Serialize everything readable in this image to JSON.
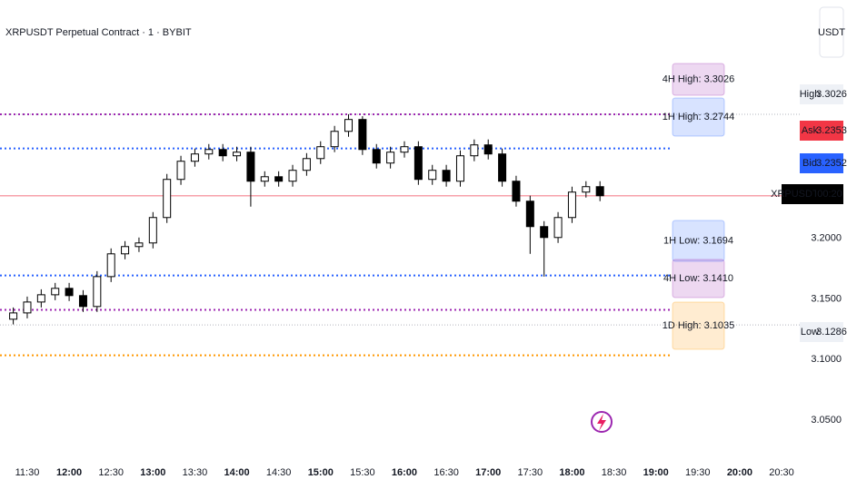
{
  "chart_data": {
    "type": "candlestick",
    "title": "XRPUSDT Perpetual Contract · 1 · BYBIT",
    "currency": "USDT",
    "x": [
      680,
      690,
      700,
      710,
      720,
      730,
      740,
      750,
      760,
      770,
      780,
      790,
      800,
      810,
      820,
      830,
      840,
      850,
      860,
      870,
      880,
      890,
      900,
      910,
      920,
      930,
      940,
      950,
      960,
      970,
      980,
      990,
      1000,
      1010,
      1020,
      1030,
      1040,
      1050,
      1060,
      1070,
      1080,
      1090,
      1100
    ],
    "open": [
      3.1333,
      3.1385,
      3.1475,
      3.1535,
      3.1588,
      3.1528,
      3.1438,
      3.1685,
      3.1873,
      3.1933,
      3.1963,
      3.2173,
      3.2488,
      3.2638,
      3.2698,
      3.2735,
      3.2683,
      3.2713,
      3.2473,
      3.251,
      3.2473,
      3.2563,
      3.266,
      3.2758,
      3.2885,
      3.2983,
      3.2735,
      3.2623,
      3.2713,
      3.2758,
      3.2488,
      3.2563,
      3.2473,
      3.2683,
      3.2773,
      3.2698,
      3.2473,
      3.2308,
      3.2098,
      3.2008,
      3.2173,
      3.2383,
      3.2428
    ],
    "high": [
      3.143,
      3.152,
      3.158,
      3.1633,
      3.1633,
      3.1573,
      3.173,
      3.1918,
      3.1978,
      3.2008,
      3.2218,
      3.2533,
      3.2683,
      3.2743,
      3.278,
      3.278,
      3.2758,
      3.2758,
      3.2555,
      3.2555,
      3.2608,
      3.2705,
      3.2803,
      3.293,
      3.3026,
      3.301,
      3.278,
      3.2758,
      3.2803,
      3.2803,
      3.2608,
      3.2608,
      3.2728,
      3.2818,
      3.2818,
      3.2743,
      3.2518,
      3.2353,
      3.2143,
      3.2218,
      3.2428,
      3.2473,
      3.2473
    ],
    "low": [
      3.129,
      3.134,
      3.143,
      3.149,
      3.1483,
      3.1393,
      3.1393,
      3.164,
      3.1828,
      3.1888,
      3.1918,
      3.2128,
      3.2443,
      3.2593,
      3.2653,
      3.2638,
      3.2638,
      3.2263,
      3.2428,
      3.2428,
      3.2428,
      3.2518,
      3.2615,
      3.2713,
      3.284,
      3.269,
      3.2578,
      3.2578,
      3.2668,
      3.2443,
      3.2443,
      3.2428,
      3.2428,
      3.2638,
      3.2653,
      3.2428,
      3.2263,
      3.1873,
      3.1685,
      3.1963,
      3.2128,
      3.2338,
      3.2308
    ],
    "close": [
      3.1385,
      3.1475,
      3.1535,
      3.1588,
      3.1528,
      3.1438,
      3.1685,
      3.1873,
      3.1933,
      3.1963,
      3.2173,
      3.2488,
      3.2638,
      3.2698,
      3.2735,
      3.2683,
      3.2713,
      3.2473,
      3.251,
      3.2473,
      3.2563,
      3.266,
      3.2758,
      3.2885,
      3.2983,
      3.2735,
      3.2623,
      3.2713,
      3.2758,
      3.2488,
      3.2563,
      3.2473,
      3.2683,
      3.2773,
      3.2698,
      3.2473,
      3.2308,
      3.2098,
      3.2008,
      3.2173,
      3.2383,
      3.2428,
      3.2353
    ],
    "levels": [
      {
        "label": "4H High: 3.3026",
        "value": 3.3026,
        "color": "#9c27b0"
      },
      {
        "label": "1H High: 3.2744",
        "value": 3.2744,
        "color": "#2962ff"
      },
      {
        "label": "1H Low: 3.1694",
        "value": 3.1694,
        "color": "#2962ff"
      },
      {
        "label": "4H Low: 3.1410",
        "value": 3.141,
        "color": "#9c27b0"
      },
      {
        "label": "1D High: 3.1035",
        "value": 3.1035,
        "color": "#ff9800"
      }
    ],
    "price_tags": [
      {
        "name": "High",
        "value": {
          "value": 3.3026,
          "label": "3.3026"
        },
        "color": "#eef1f6",
        "text_color": "#131722"
      },
      {
        "name": "Ask",
        "value": {
          "value": 3.2353,
          "label": "3.2353"
        },
        "color": "#f23645",
        "text_color": "#ffffff"
      },
      {
        "name": "Bid",
        "value": {
          "value": 3.2352,
          "label": "3.2352"
        },
        "color": "#2962ff",
        "text_color": "#ffffff"
      },
      {
        "name": "XRPUSDT.P",
        "value": "00:20",
        "color": "#000000",
        "text_color": "#ffffff"
      },
      {
        "name": "Low",
        "value": {
          "value": 3.1286,
          "label": "3.1286"
        },
        "color": "#eef1f6",
        "text_color": "#131722"
      }
    ],
    "ylim": [
      3.0185,
      3.397
    ],
    "yticks": [
      {
        "value": 3.2,
        "label": "3.2000"
      },
      {
        "value": 3.15,
        "label": "3.1500"
      },
      {
        "value": 3.1,
        "label": "3.1000"
      },
      {
        "value": 3.05,
        "label": "3.0500"
      }
    ],
    "xlim": [
      670.5,
      1230
    ],
    "xticks": [
      {
        "value": 690,
        "label": "11:30"
      },
      {
        "value": 720,
        "label": "12:00"
      },
      {
        "value": 750,
        "label": "12:30"
      },
      {
        "value": 780,
        "label": "13:00"
      },
      {
        "value": 810,
        "label": "13:30"
      },
      {
        "value": 840,
        "label": "14:00"
      },
      {
        "value": 870,
        "label": "14:30"
      },
      {
        "value": 900,
        "label": "15:00"
      },
      {
        "value": 930,
        "label": "15:30"
      },
      {
        "value": 960,
        "label": "16:00"
      },
      {
        "value": 990,
        "label": "16:30"
      },
      {
        "value": 1020,
        "label": "17:00"
      },
      {
        "value": 1050,
        "label": "17:30"
      },
      {
        "value": 1080,
        "label": "18:00"
      },
      {
        "value": 1110,
        "label": "18:30"
      },
      {
        "value": 1140,
        "label": "19:00"
      },
      {
        "value": 1170,
        "label": "19:30"
      },
      {
        "value": 1200,
        "label": "20:00"
      },
      {
        "value": 1230,
        "label": "20:30"
      }
    ],
    "up_color": "#ffffff",
    "down_color": "#000000",
    "current_line_color": "#f7a1aa"
  }
}
